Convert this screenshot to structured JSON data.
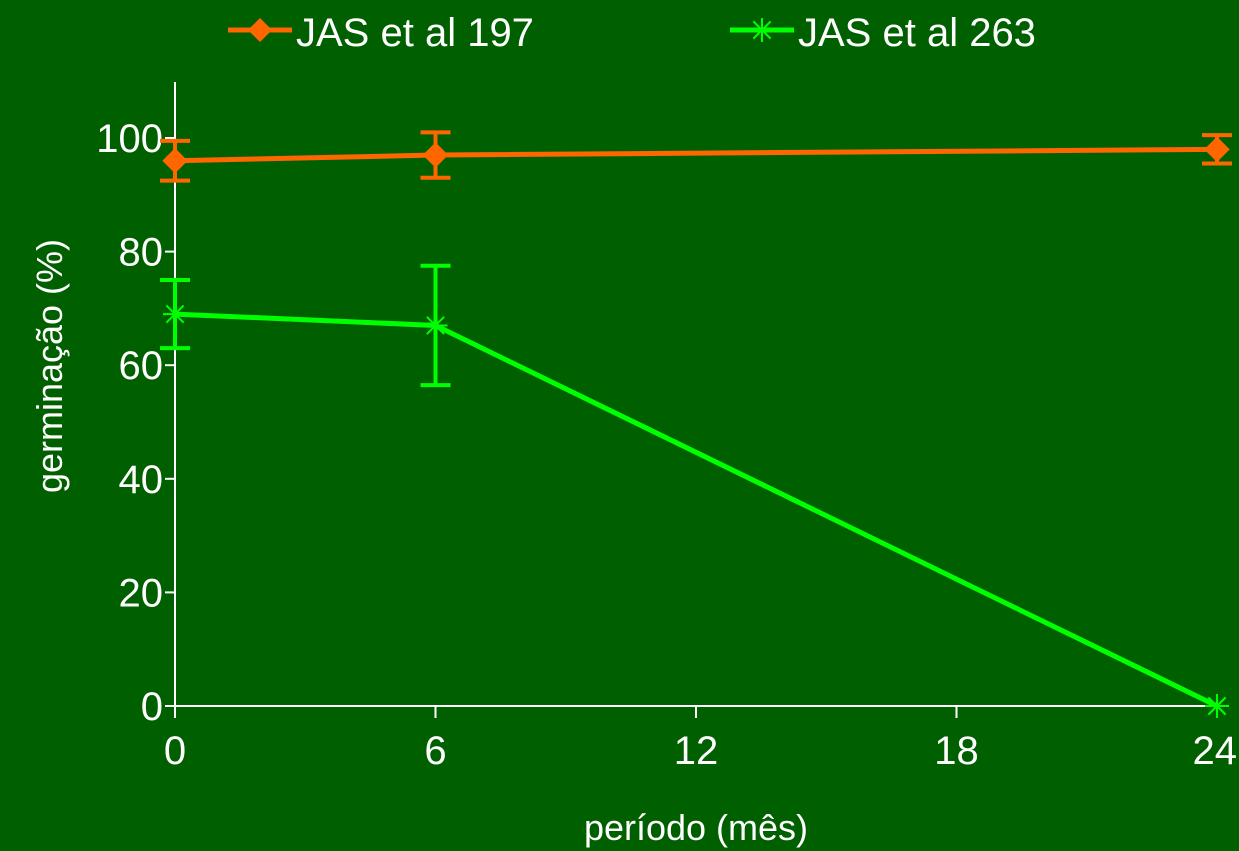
{
  "colors": {
    "background": "#006000",
    "axis": "#ffffff",
    "series_1": "#ff6600",
    "series_2": "#00ff00"
  },
  "chart_data": {
    "type": "line",
    "title": "",
    "xlabel": "período (mês)",
    "ylabel": "germinação (%)",
    "xlim": [
      0,
      24
    ],
    "ylim": [
      0,
      110
    ],
    "x_ticks": [
      0,
      6,
      12,
      18,
      24
    ],
    "y_ticks": [
      0,
      20,
      40,
      60,
      80,
      100
    ],
    "grid": false,
    "legend_position": "top",
    "series": [
      {
        "name": "JAS et al 197",
        "marker": "diamond",
        "color": "#ff6600",
        "x": [
          0,
          6,
          24
        ],
        "y": [
          96,
          97,
          98
        ],
        "error": [
          3.5,
          4,
          2.5
        ]
      },
      {
        "name": "JAS et al 263",
        "marker": "asterisk",
        "color": "#00ff00",
        "x": [
          0,
          6,
          24
        ],
        "y": [
          69,
          67,
          0
        ],
        "error": [
          6,
          10.5,
          0
        ]
      }
    ]
  }
}
